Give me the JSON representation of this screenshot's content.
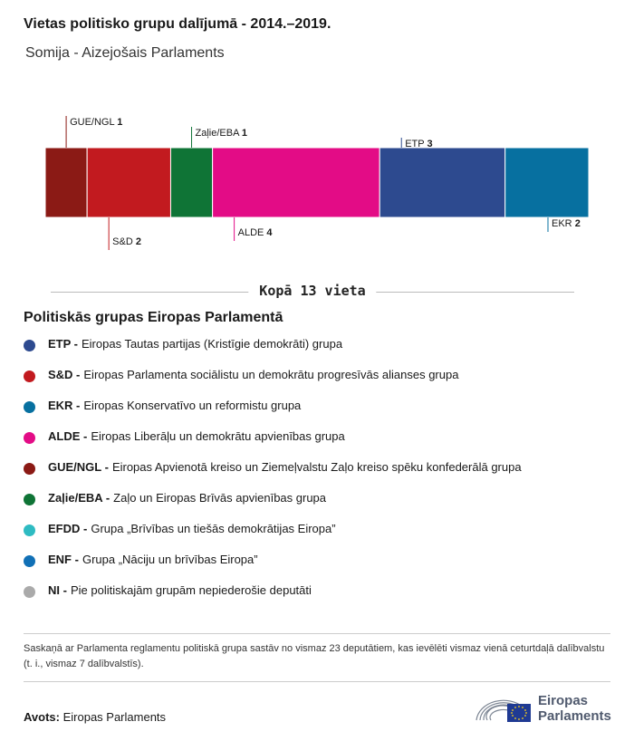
{
  "title": "Vietas politisko grupu dalījumā - 2014.–2019.",
  "subtitle": "Somija - Aizejošais Parlaments",
  "total_label": "Kopā 13 vieta",
  "chart_data": {
    "type": "bar",
    "stacked": true,
    "orientation": "horizontal",
    "total": 13,
    "segments": [
      {
        "group": "GUE/NGL",
        "seats": 1,
        "color": "#8b1a15",
        "label_position": "top"
      },
      {
        "group": "S&D",
        "seats": 2,
        "color": "#c21a1f",
        "label_position": "bottom"
      },
      {
        "group": "Zaļie/EBA",
        "seats": 1,
        "color": "#0f7436",
        "label_position": "top"
      },
      {
        "group": "ALDE",
        "seats": 4,
        "color": "#e30c86",
        "label_position": "bottom"
      },
      {
        "group": "ETP",
        "seats": 3,
        "color": "#2d4a8f",
        "label_position": "top"
      },
      {
        "group": "EKR",
        "seats": 2,
        "color": "#0770a0",
        "label_position": "bottom"
      }
    ]
  },
  "legend_title": "Politiskās grupas Eiropas Parlamentā",
  "legend": [
    {
      "abbr": "ETP -",
      "desc": "Eiropas Tautas partijas (Kristīgie demokrāti) grupa",
      "color": "#2d4a8f"
    },
    {
      "abbr": "S&D -",
      "desc": "Eiropas Parlamenta sociālistu un demokrātu progresīvās alianses grupa",
      "color": "#c21a1f"
    },
    {
      "abbr": "EKR -",
      "desc": "Eiropas Konservatīvo un reformistu grupa",
      "color": "#0770a0"
    },
    {
      "abbr": "ALDE -",
      "desc": "Eiropas Liberāļu un demokrātu apvienības grupa",
      "color": "#e30c86"
    },
    {
      "abbr": "GUE/NGL -",
      "desc": "Eiropas Apvienotā kreiso un Ziemeļvalstu Zaļo kreiso spēku konfederālā grupa",
      "color": "#8b1a15"
    },
    {
      "abbr": "Zaļie/EBA -",
      "desc": "Zaļo un Eiropas Brīvās apvienības grupa",
      "color": "#0f7436"
    },
    {
      "abbr": "EFDD -",
      "desc": "Grupa „Brīvības un tiešās demokrātijas Eiropa”",
      "color": "#2ebbc2"
    },
    {
      "abbr": "ENF -",
      "desc": "Grupa „Nāciju un brīvības Eiropa”",
      "color": "#1170b6"
    },
    {
      "abbr": "NI -",
      "desc": "Pie politiskajām grupām nepiederošie deputāti",
      "color": "#aaaaaa"
    }
  ],
  "note": "Saskaņā ar Parlamenta reglamentu politiskā grupa sastāv no vismaz 23 deputātiem, kas ievēlēti vismaz vienā ceturtdaļā dalībvalstu (t. i., vismaz 7 dalībvalstīs).",
  "source_label": "Avots:",
  "source_value": "Eiropas Parlaments",
  "logo_line1": "Eiropas",
  "logo_line2": "Parlaments"
}
